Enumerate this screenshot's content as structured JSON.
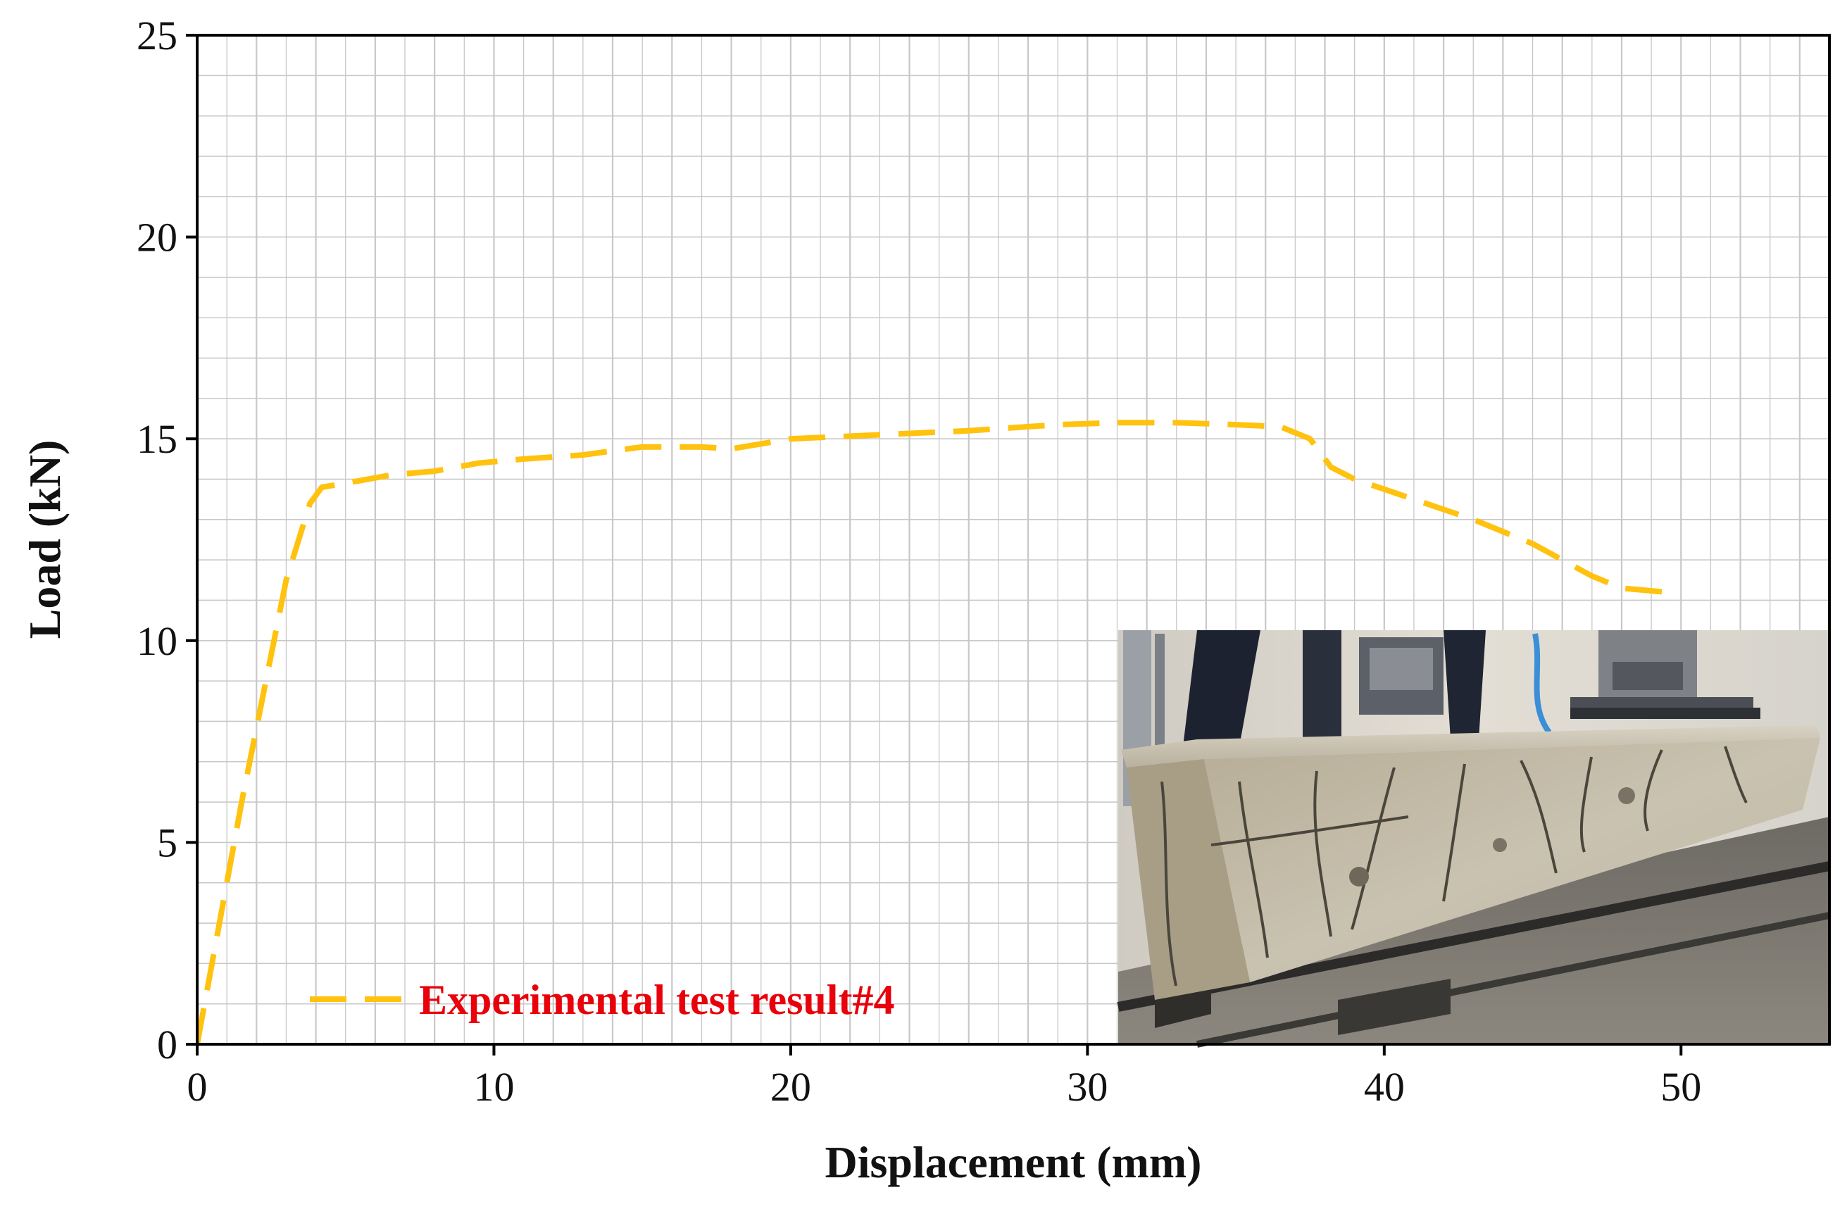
{
  "chart_data": {
    "type": "line",
    "xlabel": "Displacement (mm)",
    "ylabel": "Load (kN)",
    "xlim": [
      0,
      55
    ],
    "ylim": [
      0,
      25
    ],
    "x_ticks": [
      0,
      10,
      20,
      30,
      40,
      50
    ],
    "y_ticks": [
      0,
      5,
      10,
      15,
      20,
      25
    ],
    "x_tick_labels": [
      "0",
      "10",
      "20",
      "30",
      "40",
      "50"
    ],
    "y_tick_labels": [
      "0",
      "5",
      "10",
      "15",
      "20",
      "25"
    ],
    "x_minor_step": 1,
    "y_minor_step": 1,
    "grid": true,
    "legend_position": "bottom-left",
    "series": [
      {
        "name": "Experimental test result#4",
        "color": "#FFC20E",
        "label_color": "#E8000B",
        "line_style": "dashed",
        "x": [
          0,
          1.5,
          3.0,
          3.8,
          4.2,
          5.0,
          6.5,
          8.0,
          9.5,
          11,
          13,
          15,
          17,
          18,
          20,
          23,
          26,
          29,
          31,
          33,
          35,
          36.5,
          37.5,
          38.2,
          39,
          41,
          43,
          45,
          47,
          48,
          49.5
        ],
        "y": [
          0,
          6.0,
          11.5,
          13.4,
          13.8,
          13.9,
          14.1,
          14.2,
          14.4,
          14.5,
          14.6,
          14.8,
          14.8,
          14.75,
          15.0,
          15.1,
          15.2,
          15.35,
          15.4,
          15.4,
          15.35,
          15.3,
          15.0,
          14.3,
          14.0,
          13.5,
          13.0,
          12.4,
          11.6,
          11.3,
          11.2
        ]
      }
    ]
  },
  "inset_photo": {
    "description_icon": "cracked-concrete-beam-photo"
  }
}
